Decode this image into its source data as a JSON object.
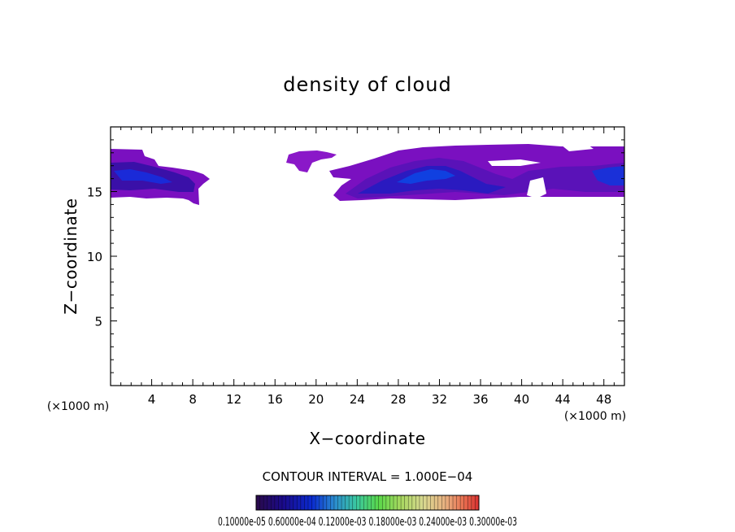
{
  "chart_data": {
    "type": "heatmap",
    "title": "density of cloud",
    "xlabel": "X−coordinate",
    "ylabel": "Z−coordinate",
    "x_unit": "(×1000 m)",
    "y_unit": "(×1000 m)",
    "xlim": [
      0,
      50
    ],
    "ylim": [
      0,
      20
    ],
    "x_ticks": [
      "4",
      "8",
      "12",
      "16",
      "20",
      "24",
      "28",
      "32",
      "36",
      "40",
      "44",
      "48"
    ],
    "y_ticks": [
      "5",
      "10",
      "15"
    ],
    "contour_interval_text": "CONTOUR INTERVAL = 1.000E−04",
    "colorbar": {
      "labels_text": "0.10000e-05 0.60000e-04 0.12000e-03 0.18000e-03 0.24000e-03 0.30000e-03",
      "colors": [
        "#2a0a4a",
        "#1a0a8a",
        "#0a2ad0",
        "#2a8ad0",
        "#3ac8a0",
        "#5ad84a",
        "#a8d860",
        "#d8d890",
        "#e8b080",
        "#e87050",
        "#d83030"
      ]
    },
    "cloud_regions": [
      {
        "name": "left",
        "x": [
          0,
          9.6
        ],
        "z": [
          14,
          18.3
        ]
      },
      {
        "name": "middle",
        "x": [
          17,
          22
        ],
        "z": [
          16.5,
          18
        ]
      },
      {
        "name": "right",
        "x": [
          21,
          50
        ],
        "z": [
          14.3,
          18.5
        ]
      }
    ]
  }
}
